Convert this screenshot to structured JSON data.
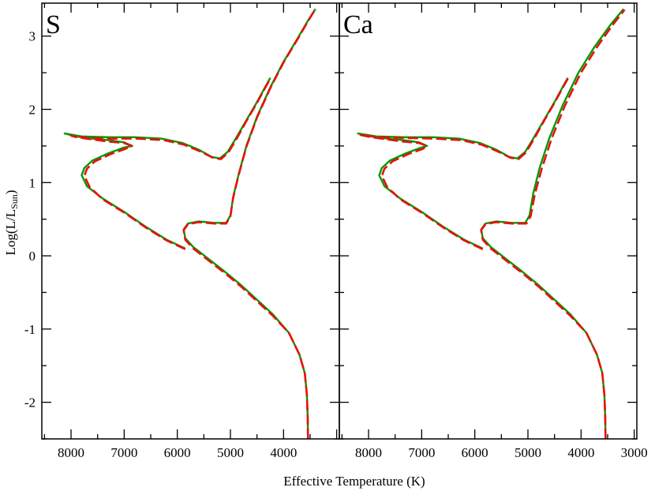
{
  "chart_data": {
    "type": "line",
    "layout": "two panels side by side sharing the y axis",
    "xlabel": "Effective Temperature (K)",
    "ylabel_parts": {
      "main": "Log(L/L",
      "sub": "Sun",
      "close": ")"
    },
    "x_axis": "reversed",
    "ylim": [
      -2.5,
      3.45
    ],
    "yticks": [
      -2,
      -1,
      0,
      1,
      2,
      3
    ],
    "ytick_labels": [
      "-2",
      "-1",
      "0",
      "1",
      "2",
      "3"
    ],
    "grid": false,
    "legend": "none",
    "colors": {
      "solid": "#009a00",
      "dashed": "#e8100c"
    },
    "panels": [
      {
        "label": "S",
        "xlim": [
          8550,
          2950
        ],
        "xticks": [
          8000,
          7000,
          6000,
          5000,
          4000
        ],
        "xtick_labels": [
          "8000",
          "7000",
          "6000",
          "5000",
          "4000"
        ],
        "series": [
          {
            "style": "solid",
            "points": [
              [
                3540,
                -2.5
              ],
              [
                3545,
                -2.2
              ],
              [
                3560,
                -1.9
              ],
              [
                3600,
                -1.6
              ],
              [
                3700,
                -1.35
              ],
              [
                3900,
                -1.05
              ],
              [
                4200,
                -0.8
              ],
              [
                4500,
                -0.6
              ],
              [
                4800,
                -0.4
              ],
              [
                5100,
                -0.22
              ],
              [
                5400,
                -0.05
              ],
              [
                5700,
                0.12
              ],
              [
                5850,
                0.24
              ],
              [
                5880,
                0.36
              ],
              [
                5800,
                0.44
              ],
              [
                5600,
                0.47
              ],
              [
                5300,
                0.45
              ],
              [
                5080,
                0.45
              ],
              [
                5000,
                0.55
              ],
              [
                4950,
                0.8
              ],
              [
                4850,
                1.1
              ],
              [
                4700,
                1.5
              ],
              [
                4500,
                1.9
              ],
              [
                4250,
                2.3
              ],
              [
                4000,
                2.65
              ],
              [
                3750,
                2.95
              ],
              [
                3550,
                3.2
              ],
              [
                3400,
                3.37
              ]
            ]
          },
          {
            "style": "solid",
            "points": [
              [
                5850,
                0.1
              ],
              [
                6200,
                0.22
              ],
              [
                6600,
                0.4
              ],
              [
                7000,
                0.6
              ],
              [
                7400,
                0.78
              ],
              [
                7700,
                0.95
              ],
              [
                7800,
                1.1
              ],
              [
                7750,
                1.2
              ],
              [
                7600,
                1.3
              ],
              [
                7300,
                1.4
              ],
              [
                7000,
                1.48
              ],
              [
                6850,
                1.5
              ],
              [
                7000,
                1.55
              ],
              [
                7300,
                1.58
              ],
              [
                7600,
                1.6
              ],
              [
                7900,
                1.63
              ],
              [
                8120,
                1.67
              ],
              [
                7800,
                1.63
              ],
              [
                7300,
                1.62
              ],
              [
                6800,
                1.62
              ],
              [
                6300,
                1.6
              ],
              [
                5900,
                1.54
              ],
              [
                5600,
                1.45
              ],
              [
                5350,
                1.35
              ],
              [
                5200,
                1.33
              ],
              [
                5050,
                1.42
              ],
              [
                4900,
                1.6
              ],
              [
                4700,
                1.85
              ],
              [
                4500,
                2.1
              ],
              [
                4350,
                2.3
              ],
              [
                4250,
                2.43
              ]
            ]
          },
          {
            "style": "dashed",
            "points": [
              [
                3540,
                -2.5
              ],
              [
                3545,
                -2.2
              ],
              [
                3560,
                -1.9
              ],
              [
                3600,
                -1.6
              ],
              [
                3700,
                -1.35
              ],
              [
                3900,
                -1.05
              ],
              [
                4200,
                -0.82
              ],
              [
                4500,
                -0.62
              ],
              [
                4800,
                -0.42
              ],
              [
                5100,
                -0.24
              ],
              [
                5400,
                -0.07
              ],
              [
                5700,
                0.1
              ],
              [
                5850,
                0.22
              ],
              [
                5880,
                0.35
              ],
              [
                5800,
                0.43
              ],
              [
                5600,
                0.46
              ],
              [
                5300,
                0.44
              ],
              [
                5080,
                0.44
              ],
              [
                5000,
                0.54
              ],
              [
                4950,
                0.79
              ],
              [
                4850,
                1.09
              ],
              [
                4700,
                1.49
              ],
              [
                4500,
                1.89
              ],
              [
                4250,
                2.29
              ],
              [
                4000,
                2.64
              ],
              [
                3750,
                2.94
              ],
              [
                3550,
                3.19
              ],
              [
                3400,
                3.37
              ]
            ]
          },
          {
            "style": "dashed",
            "points": [
              [
                5850,
                0.09
              ],
              [
                6200,
                0.21
              ],
              [
                6600,
                0.39
              ],
              [
                7000,
                0.59
              ],
              [
                7400,
                0.77
              ],
              [
                7650,
                0.94
              ],
              [
                7750,
                1.09
              ],
              [
                7700,
                1.19
              ],
              [
                7550,
                1.29
              ],
              [
                7250,
                1.39
              ],
              [
                6980,
                1.46
              ],
              [
                6850,
                1.5
              ],
              [
                7000,
                1.54
              ],
              [
                7300,
                1.56
              ],
              [
                7600,
                1.59
              ],
              [
                7900,
                1.62
              ],
              [
                8000,
                1.64
              ],
              [
                7700,
                1.61
              ],
              [
                7250,
                1.6
              ],
              [
                6750,
                1.6
              ],
              [
                6250,
                1.58
              ],
              [
                5880,
                1.52
              ],
              [
                5580,
                1.43
              ],
              [
                5330,
                1.34
              ],
              [
                5180,
                1.32
              ],
              [
                5040,
                1.41
              ],
              [
                4890,
                1.59
              ],
              [
                4700,
                1.84
              ],
              [
                4500,
                2.09
              ],
              [
                4350,
                2.29
              ],
              [
                4250,
                2.42
              ]
            ]
          }
        ]
      },
      {
        "label": "Ca",
        "xlim": [
          8550,
          2950
        ],
        "xticks": [
          8000,
          7000,
          6000,
          5000,
          4000,
          3000
        ],
        "xtick_labels": [
          "8000",
          "7000",
          "6000",
          "5000",
          "4000",
          "3000"
        ],
        "series": [
          {
            "style": "solid",
            "points": [
              [
                3540,
                -2.5
              ],
              [
                3545,
                -2.2
              ],
              [
                3560,
                -1.9
              ],
              [
                3600,
                -1.6
              ],
              [
                3700,
                -1.35
              ],
              [
                3900,
                -1.05
              ],
              [
                4200,
                -0.8
              ],
              [
                4500,
                -0.6
              ],
              [
                4800,
                -0.4
              ],
              [
                5100,
                -0.22
              ],
              [
                5400,
                -0.05
              ],
              [
                5700,
                0.12
              ],
              [
                5850,
                0.24
              ],
              [
                5880,
                0.36
              ],
              [
                5800,
                0.44
              ],
              [
                5600,
                0.47
              ],
              [
                5300,
                0.45
              ],
              [
                5050,
                0.45
              ],
              [
                4970,
                0.55
              ],
              [
                4900,
                0.85
              ],
              [
                4780,
                1.2
              ],
              [
                4600,
                1.6
              ],
              [
                4350,
                2.05
              ],
              [
                4050,
                2.5
              ],
              [
                3750,
                2.85
              ],
              [
                3450,
                3.15
              ],
              [
                3200,
                3.37
              ]
            ]
          },
          {
            "style": "solid",
            "points": [
              [
                5850,
                0.1
              ],
              [
                6200,
                0.22
              ],
              [
                6600,
                0.4
              ],
              [
                7000,
                0.6
              ],
              [
                7400,
                0.78
              ],
              [
                7700,
                0.95
              ],
              [
                7800,
                1.1
              ],
              [
                7750,
                1.2
              ],
              [
                7600,
                1.3
              ],
              [
                7300,
                1.4
              ],
              [
                7000,
                1.48
              ],
              [
                6900,
                1.5
              ],
              [
                7050,
                1.55
              ],
              [
                7350,
                1.58
              ],
              [
                7650,
                1.6
              ],
              [
                7950,
                1.63
              ],
              [
                8200,
                1.67
              ],
              [
                7850,
                1.63
              ],
              [
                7350,
                1.62
              ],
              [
                6800,
                1.62
              ],
              [
                6300,
                1.6
              ],
              [
                5900,
                1.54
              ],
              [
                5600,
                1.45
              ],
              [
                5350,
                1.35
              ],
              [
                5200,
                1.33
              ],
              [
                5050,
                1.42
              ],
              [
                4900,
                1.6
              ],
              [
                4700,
                1.85
              ],
              [
                4500,
                2.1
              ],
              [
                4350,
                2.3
              ],
              [
                4250,
                2.43
              ]
            ]
          },
          {
            "style": "dashed",
            "points": [
              [
                3540,
                -2.5
              ],
              [
                3545,
                -2.2
              ],
              [
                3560,
                -1.9
              ],
              [
                3600,
                -1.6
              ],
              [
                3700,
                -1.35
              ],
              [
                3900,
                -1.05
              ],
              [
                4200,
                -0.82
              ],
              [
                4500,
                -0.62
              ],
              [
                4800,
                -0.42
              ],
              [
                5100,
                -0.24
              ],
              [
                5400,
                -0.07
              ],
              [
                5700,
                0.1
              ],
              [
                5850,
                0.22
              ],
              [
                5880,
                0.35
              ],
              [
                5800,
                0.43
              ],
              [
                5600,
                0.46
              ],
              [
                5300,
                0.44
              ],
              [
                5030,
                0.44
              ],
              [
                4950,
                0.54
              ],
              [
                4870,
                0.84
              ],
              [
                4740,
                1.19
              ],
              [
                4560,
                1.59
              ],
              [
                4310,
                2.04
              ],
              [
                4010,
                2.49
              ],
              [
                3710,
                2.84
              ],
              [
                3420,
                3.14
              ],
              [
                3180,
                3.36
              ]
            ]
          },
          {
            "style": "dashed",
            "points": [
              [
                5850,
                0.09
              ],
              [
                6200,
                0.21
              ],
              [
                6600,
                0.39
              ],
              [
                7000,
                0.59
              ],
              [
                7400,
                0.77
              ],
              [
                7650,
                0.94
              ],
              [
                7750,
                1.09
              ],
              [
                7700,
                1.19
              ],
              [
                7550,
                1.29
              ],
              [
                7250,
                1.39
              ],
              [
                6980,
                1.46
              ],
              [
                6900,
                1.5
              ],
              [
                7050,
                1.54
              ],
              [
                7350,
                1.56
              ],
              [
                7650,
                1.59
              ],
              [
                7950,
                1.62
              ],
              [
                8150,
                1.65
              ],
              [
                7800,
                1.62
              ],
              [
                7300,
                1.61
              ],
              [
                6750,
                1.6
              ],
              [
                6250,
                1.58
              ],
              [
                5880,
                1.52
              ],
              [
                5580,
                1.43
              ],
              [
                5330,
                1.34
              ],
              [
                5180,
                1.32
              ],
              [
                5040,
                1.41
              ],
              [
                4890,
                1.59
              ],
              [
                4700,
                1.84
              ],
              [
                4500,
                2.09
              ],
              [
                4350,
                2.29
              ],
              [
                4250,
                2.42
              ]
            ]
          }
        ]
      }
    ]
  }
}
